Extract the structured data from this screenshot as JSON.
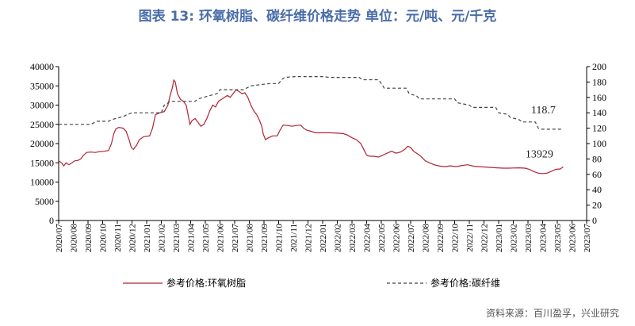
{
  "title": "图表 13: 环氧树脂、碳纤维价格走势  单位：元/吨、元/千克",
  "source": "资料来源：百川盈孚，兴业研究",
  "chart_data": {
    "type": "line",
    "x_ticks": [
      "2020/07",
      "2020/08",
      "2020/09",
      "2020/10",
      "2020/11",
      "2020/12",
      "2021/01",
      "2021/02",
      "2021/03",
      "2021/04",
      "2021/05",
      "2021/06",
      "2021/07",
      "2021/08",
      "2021/09",
      "2021/10",
      "2021/11",
      "2021/12",
      "2022/01",
      "2022/02",
      "2022/03",
      "2022/04",
      "2022/05",
      "2022/06",
      "2022/07",
      "2022/08",
      "2022/09",
      "2022/10",
      "2022/11",
      "2022/12",
      "2023/01",
      "2023/02",
      "2023/03",
      "2023/04",
      "2023/05",
      "2023/06",
      "2023/07"
    ],
    "y_left": {
      "min": 0,
      "max": 40000,
      "ticks": [
        "0",
        "5000",
        "10000",
        "15000",
        "20000",
        "25000",
        "30000",
        "35000",
        "40000"
      ]
    },
    "y_right": {
      "min": 0,
      "max": 200,
      "ticks": [
        "0",
        "20",
        "40",
        "60",
        "80",
        "100",
        "120",
        "140",
        "160",
        "180",
        "200"
      ]
    },
    "series": [
      {
        "name": "参考价格:环氧树脂",
        "axis": "left",
        "color": "#b22234",
        "style": "solid",
        "points": [
          [
            0,
            15500
          ],
          [
            0.2,
            15000
          ],
          [
            0.35,
            14200
          ],
          [
            0.5,
            15000
          ],
          [
            0.7,
            14500
          ],
          [
            0.9,
            15000
          ],
          [
            1.1,
            15500
          ],
          [
            1.3,
            15600
          ],
          [
            1.5,
            16000
          ],
          [
            1.7,
            17000
          ],
          [
            1.9,
            17700
          ],
          [
            2.2,
            17800
          ],
          [
            2.5,
            17700
          ],
          [
            2.8,
            17900
          ],
          [
            3.1,
            18000
          ],
          [
            3.4,
            18200
          ],
          [
            3.6,
            20000
          ],
          [
            3.75,
            22500
          ],
          [
            3.9,
            23800
          ],
          [
            4.1,
            24200
          ],
          [
            4.4,
            24000
          ],
          [
            4.6,
            23200
          ],
          [
            4.8,
            21000
          ],
          [
            4.95,
            19000
          ],
          [
            5.1,
            18500
          ],
          [
            5.3,
            19500
          ],
          [
            5.5,
            21000
          ],
          [
            5.8,
            21800
          ],
          [
            6.2,
            22000
          ],
          [
            6.4,
            24000
          ],
          [
            6.6,
            27500
          ],
          [
            6.9,
            28000
          ],
          [
            7.2,
            28300
          ],
          [
            7.45,
            30000
          ],
          [
            7.6,
            32500
          ],
          [
            7.75,
            34500
          ],
          [
            7.85,
            36500
          ],
          [
            7.95,
            36000
          ],
          [
            8.1,
            33000
          ],
          [
            8.3,
            31500
          ],
          [
            8.5,
            31000
          ],
          [
            8.7,
            30000
          ],
          [
            8.85,
            27000
          ],
          [
            8.95,
            25000
          ],
          [
            9.1,
            26000
          ],
          [
            9.3,
            26500
          ],
          [
            9.5,
            25500
          ],
          [
            9.7,
            24500
          ],
          [
            9.9,
            25000
          ],
          [
            10.1,
            26500
          ],
          [
            10.3,
            28500
          ],
          [
            10.5,
            30000
          ],
          [
            10.7,
            29500
          ],
          [
            10.9,
            31000
          ],
          [
            11.1,
            31500
          ],
          [
            11.3,
            32000
          ],
          [
            11.5,
            32500
          ],
          [
            11.7,
            32000
          ],
          [
            11.9,
            33000
          ],
          [
            12.1,
            34000
          ],
          [
            12.3,
            33500
          ],
          [
            12.5,
            33000
          ],
          [
            12.7,
            33200
          ],
          [
            12.9,
            32000
          ],
          [
            13.1,
            30000
          ],
          [
            13.3,
            28500
          ],
          [
            13.5,
            27500
          ],
          [
            13.7,
            26000
          ],
          [
            13.85,
            24500
          ],
          [
            13.95,
            22500
          ],
          [
            14.1,
            21000
          ],
          [
            14.3,
            21500
          ],
          [
            14.6,
            22000
          ],
          [
            14.9,
            22000
          ],
          [
            15.1,
            23500
          ],
          [
            15.3,
            24800
          ],
          [
            15.6,
            24700
          ],
          [
            15.9,
            24500
          ],
          [
            16.2,
            24700
          ],
          [
            16.5,
            24800
          ],
          [
            16.7,
            24000
          ],
          [
            16.9,
            23500
          ],
          [
            17.2,
            23200
          ],
          [
            17.5,
            22800
          ],
          [
            18,
            22800
          ],
          [
            18.5,
            22800
          ],
          [
            19,
            22700
          ],
          [
            19.4,
            22600
          ],
          [
            19.7,
            22200
          ],
          [
            20,
            21500
          ],
          [
            20.3,
            21000
          ],
          [
            20.6,
            20000
          ],
          [
            20.8,
            18500
          ],
          [
            21,
            17000
          ],
          [
            21.2,
            16700
          ],
          [
            21.5,
            16700
          ],
          [
            21.8,
            16500
          ],
          [
            22.1,
            17000
          ],
          [
            22.4,
            17500
          ],
          [
            22.7,
            18000
          ],
          [
            23,
            17500
          ],
          [
            23.3,
            17800
          ],
          [
            23.6,
            18500
          ],
          [
            23.8,
            19300
          ],
          [
            24,
            19000
          ],
          [
            24.2,
            18000
          ],
          [
            24.4,
            17500
          ],
          [
            24.6,
            17000
          ],
          [
            24.8,
            16300
          ],
          [
            25,
            15500
          ],
          [
            25.3,
            15000
          ],
          [
            25.6,
            14500
          ],
          [
            25.9,
            14200
          ],
          [
            26.3,
            14000
          ],
          [
            26.7,
            14200
          ],
          [
            27.1,
            14000
          ],
          [
            27.5,
            14300
          ],
          [
            27.9,
            14500
          ],
          [
            28.3,
            14100
          ],
          [
            28.7,
            14000
          ],
          [
            29.1,
            13900
          ],
          [
            29.5,
            13800
          ],
          [
            29.9,
            13700
          ],
          [
            30.3,
            13600
          ],
          [
            30.7,
            13600
          ],
          [
            31,
            13650
          ],
          [
            31.4,
            13700
          ],
          [
            31.8,
            13600
          ],
          [
            32.1,
            13300
          ],
          [
            32.4,
            12700
          ],
          [
            32.7,
            12300
          ],
          [
            33,
            12200
          ],
          [
            33.3,
            12300
          ],
          [
            33.6,
            12800
          ],
          [
            33.9,
            13300
          ],
          [
            34.2,
            13400
          ],
          [
            34.4,
            13929
          ]
        ],
        "last_value_label": "13929"
      },
      {
        "name": "参考价格:碳纤维",
        "axis": "right",
        "color": "#444444",
        "style": "dashed",
        "points": [
          [
            0,
            125
          ],
          [
            2.2,
            125
          ],
          [
            2.4,
            127
          ],
          [
            2.6,
            129
          ],
          [
            3.4,
            129
          ],
          [
            3.6,
            131
          ],
          [
            4.4,
            135
          ],
          [
            4.6,
            137
          ],
          [
            5.0,
            140
          ],
          [
            7.0,
            140
          ],
          [
            7.2,
            150
          ],
          [
            7.4,
            152
          ],
          [
            7.6,
            155
          ],
          [
            9.3,
            155
          ],
          [
            9.5,
            158
          ],
          [
            10.8,
            165
          ],
          [
            11.0,
            170
          ],
          [
            12.6,
            170
          ],
          [
            12.8,
            172
          ],
          [
            13.1,
            175
          ],
          [
            13.5,
            176
          ],
          [
            14.4,
            178
          ],
          [
            15.0,
            178
          ],
          [
            15.2,
            183
          ],
          [
            15.4,
            186
          ],
          [
            16.1,
            187
          ],
          [
            18.0,
            187
          ],
          [
            18.5,
            186
          ],
          [
            20.5,
            186
          ],
          [
            20.7,
            183
          ],
          [
            21.8,
            183
          ],
          [
            22.0,
            178
          ],
          [
            22.2,
            172
          ],
          [
            23.7,
            172
          ],
          [
            23.9,
            165
          ],
          [
            24.4,
            162
          ],
          [
            24.6,
            158
          ],
          [
            27.0,
            158
          ],
          [
            27.2,
            153
          ],
          [
            28.0,
            150
          ],
          [
            28.2,
            147
          ],
          [
            29.8,
            147
          ],
          [
            30.0,
            140
          ],
          [
            30.6,
            138
          ],
          [
            30.8,
            134
          ],
          [
            31.4,
            131
          ],
          [
            31.6,
            128
          ],
          [
            32.5,
            128
          ],
          [
            32.7,
            120
          ],
          [
            32.9,
            118.7
          ],
          [
            34.4,
            118.7
          ]
        ],
        "last_value_label": "118.7"
      }
    ],
    "legend": [
      "参考价格:环氧树脂",
      "参考价格:碳纤维"
    ],
    "legend_position": "bottom",
    "grid": false
  }
}
